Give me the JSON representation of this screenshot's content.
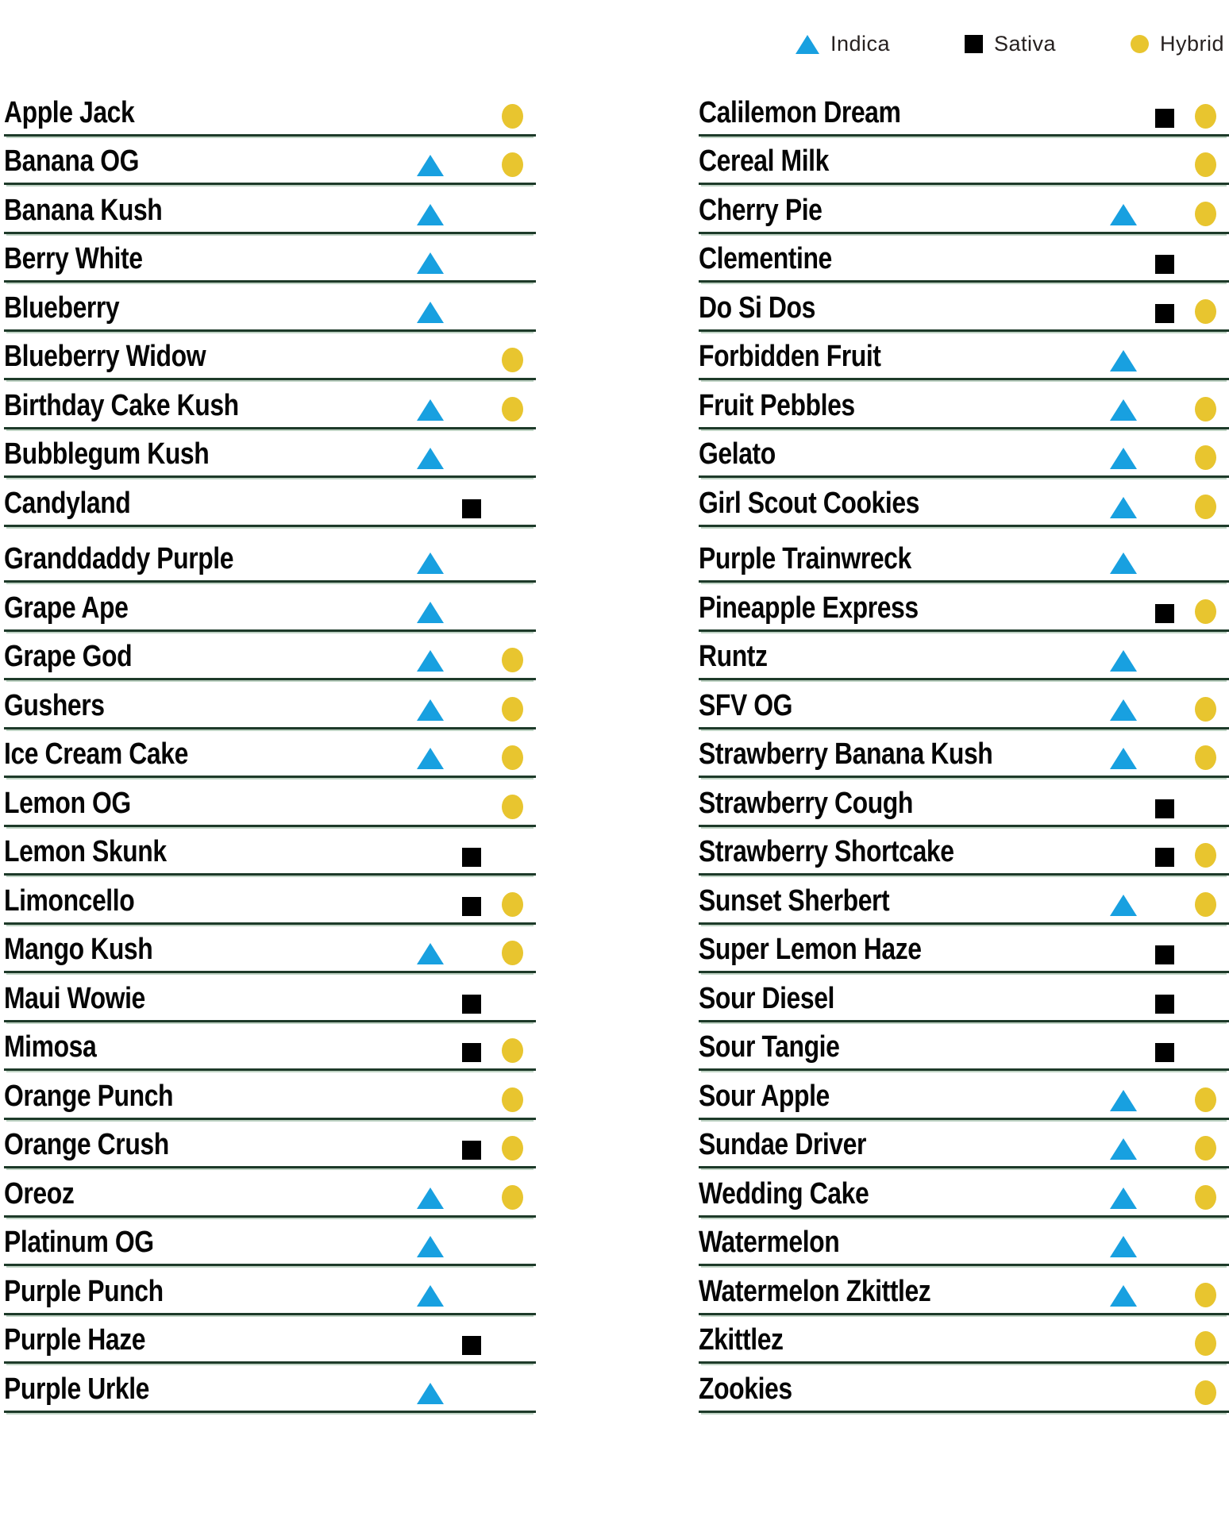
{
  "legend": {
    "items": [
      {
        "type": "indica",
        "label": "Indica"
      },
      {
        "type": "sativa",
        "label": "Sativa"
      },
      {
        "type": "hybrid",
        "label": "Hybrid"
      }
    ]
  },
  "colors": {
    "indica": "#18a0e0",
    "sativa": "#000000",
    "hybrid": "#e8c52f",
    "line": "#1d3a29"
  },
  "columns": [
    {
      "groups": [
        {
          "rows": [
            {
              "name": "Apple Jack",
              "markers": [
                "hybrid"
              ]
            },
            {
              "name": "Banana OG",
              "markers": [
                "indica",
                "hybrid"
              ]
            },
            {
              "name": "Banana Kush",
              "markers": [
                "indica"
              ]
            },
            {
              "name": "Berry White",
              "markers": [
                "indica"
              ]
            },
            {
              "name": "Blueberry",
              "markers": [
                "indica"
              ]
            },
            {
              "name": "Blueberry Widow",
              "markers": [
                "hybrid"
              ]
            },
            {
              "name": "Birthday Cake Kush",
              "markers": [
                "indica",
                "hybrid"
              ]
            },
            {
              "name": "Bubblegum Kush",
              "markers": [
                "indica"
              ]
            },
            {
              "name": "Candyland",
              "markers": [
                "sativa"
              ]
            }
          ]
        },
        {
          "rows": [
            {
              "name": "Granddaddy Purple",
              "markers": [
                "indica"
              ]
            },
            {
              "name": "Grape Ape",
              "markers": [
                "indica"
              ]
            },
            {
              "name": "Grape God",
              "markers": [
                "indica",
                "hybrid"
              ]
            },
            {
              "name": "Gushers",
              "markers": [
                "indica",
                "hybrid"
              ]
            },
            {
              "name": "Ice Cream Cake",
              "markers": [
                "indica",
                "hybrid"
              ]
            },
            {
              "name": "Lemon OG",
              "markers": [
                "hybrid"
              ]
            },
            {
              "name": "Lemon Skunk",
              "markers": [
                "sativa"
              ]
            },
            {
              "name": "Limoncello",
              "markers": [
                "sativa",
                "hybrid"
              ]
            },
            {
              "name": "Mango Kush",
              "markers": [
                "indica",
                "hybrid"
              ]
            },
            {
              "name": "Maui Wowie",
              "markers": [
                "sativa"
              ]
            },
            {
              "name": "Mimosa",
              "markers": [
                "sativa",
                "hybrid"
              ]
            },
            {
              "name": "Orange Punch",
              "markers": [
                "hybrid"
              ]
            },
            {
              "name": "Orange Crush",
              "markers": [
                "sativa",
                "hybrid"
              ]
            },
            {
              "name": "Oreoz",
              "markers": [
                "indica",
                "hybrid"
              ]
            },
            {
              "name": "Platinum OG",
              "markers": [
                "indica"
              ]
            },
            {
              "name": "Purple Punch",
              "markers": [
                "indica"
              ]
            },
            {
              "name": "Purple Haze",
              "markers": [
                "sativa"
              ]
            },
            {
              "name": "Purple Urkle",
              "markers": [
                "indica"
              ]
            }
          ]
        }
      ]
    },
    {
      "groups": [
        {
          "rows": [
            {
              "name": "Calilemon Dream",
              "markers": [
                "sativa",
                "hybrid"
              ]
            },
            {
              "name": "Cereal Milk",
              "markers": [
                "hybrid"
              ]
            },
            {
              "name": "Cherry Pie",
              "markers": [
                "indica",
                "hybrid"
              ]
            },
            {
              "name": "Clementine",
              "markers": [
                "sativa"
              ]
            },
            {
              "name": "Do Si Dos",
              "markers": [
                "sativa",
                "hybrid"
              ]
            },
            {
              "name": "Forbidden Fruit",
              "markers": [
                "indica"
              ]
            },
            {
              "name": "Fruit Pebbles",
              "markers": [
                "indica",
                "hybrid"
              ]
            },
            {
              "name": "Gelato",
              "markers": [
                "indica",
                "hybrid"
              ]
            },
            {
              "name": "Girl Scout Cookies",
              "markers": [
                "indica",
                "hybrid"
              ]
            }
          ]
        },
        {
          "rows": [
            {
              "name": "Purple Trainwreck",
              "markers": [
                "indica"
              ]
            },
            {
              "name": "Pineapple Express",
              "markers": [
                "sativa",
                "hybrid"
              ]
            },
            {
              "name": "Runtz",
              "markers": [
                "indica"
              ]
            },
            {
              "name": "SFV OG",
              "markers": [
                "indica",
                "hybrid"
              ]
            },
            {
              "name": "Strawberry Banana Kush",
              "markers": [
                "indica",
                "hybrid"
              ]
            },
            {
              "name": "Strawberry Cough",
              "markers": [
                "sativa"
              ]
            },
            {
              "name": "Strawberry Shortcake",
              "markers": [
                "sativa",
                "hybrid"
              ]
            },
            {
              "name": "Sunset Sherbert",
              "markers": [
                "indica",
                "hybrid"
              ]
            },
            {
              "name": "Super Lemon Haze",
              "markers": [
                "sativa"
              ]
            },
            {
              "name": "Sour Diesel",
              "markers": [
                "sativa"
              ]
            },
            {
              "name": "Sour Tangie",
              "markers": [
                "sativa"
              ]
            },
            {
              "name": "Sour Apple",
              "markers": [
                "indica",
                "hybrid"
              ]
            },
            {
              "name": "Sundae Driver",
              "markers": [
                "indica",
                "hybrid"
              ]
            },
            {
              "name": "Wedding Cake",
              "markers": [
                "indica",
                "hybrid"
              ]
            },
            {
              "name": "Watermelon",
              "markers": [
                "indica"
              ]
            },
            {
              "name": "Watermelon Zkittlez",
              "markers": [
                "indica",
                "hybrid"
              ]
            },
            {
              "name": "Zkittlez",
              "markers": [
                "hybrid"
              ]
            },
            {
              "name": "Zookies",
              "markers": [
                "hybrid"
              ]
            }
          ]
        }
      ]
    }
  ]
}
